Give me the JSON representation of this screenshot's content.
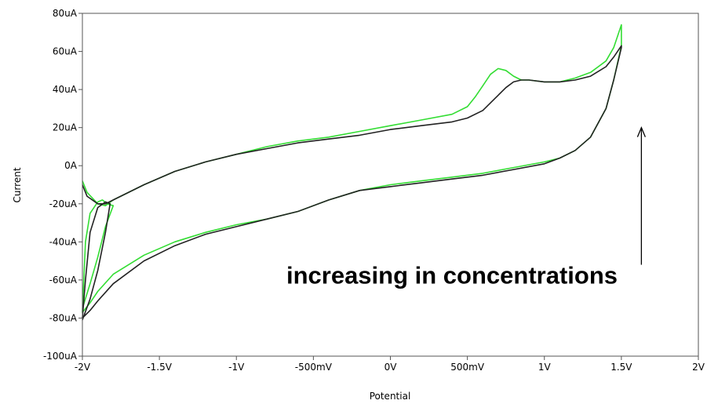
{
  "chart_data": {
    "type": "line",
    "title": "",
    "xlabel": "Potential",
    "ylabel": "Current",
    "xlim": [
      -2,
      2
    ],
    "ylim": [
      -100,
      80
    ],
    "grid": false,
    "x_ticks": [
      {
        "value": -2,
        "label": "-2V"
      },
      {
        "value": -1.5,
        "label": "-1.5V"
      },
      {
        "value": -1,
        "label": "-1V"
      },
      {
        "value": -0.5,
        "label": "-500mV"
      },
      {
        "value": 0,
        "label": "0V"
      },
      {
        "value": 0.5,
        "label": "500mV"
      },
      {
        "value": 1,
        "label": "1V"
      },
      {
        "value": 1.5,
        "label": "1.5V"
      },
      {
        "value": 2,
        "label": "2V"
      }
    ],
    "y_ticks": [
      {
        "value": 80,
        "label": "80uA"
      },
      {
        "value": 60,
        "label": "60uA"
      },
      {
        "value": 40,
        "label": "40uA"
      },
      {
        "value": 20,
        "label": "20uA"
      },
      {
        "value": 0,
        "label": "0A"
      },
      {
        "value": -20,
        "label": "-20uA"
      },
      {
        "value": -40,
        "label": "-40uA"
      },
      {
        "value": -60,
        "label": "-60uA"
      },
      {
        "value": -80,
        "label": "-80uA"
      },
      {
        "value": -100,
        "label": "-100uA"
      }
    ],
    "series": [
      {
        "color": "#33dd33",
        "x": [
          -2.0,
          -1.97,
          -1.9,
          -1.85,
          -1.8,
          -1.6,
          -1.4,
          -1.2,
          -1.0,
          -0.8,
          -0.6,
          -0.4,
          -0.2,
          0.0,
          0.2,
          0.4,
          0.5,
          0.55,
          0.6,
          0.65,
          0.7,
          0.75,
          0.8,
          0.85,
          0.9,
          1.0,
          1.1,
          1.2,
          1.3,
          1.4,
          1.45,
          1.5,
          1.5,
          1.45,
          1.4,
          1.3,
          1.2,
          1.1,
          1.0,
          0.8,
          0.6,
          0.4,
          0.2,
          0.0,
          -0.2,
          -0.4,
          -0.6,
          -0.8,
          -1.0,
          -1.2,
          -1.4,
          -1.6,
          -1.8,
          -1.9,
          -1.95,
          -2.0,
          -1.98,
          -1.95,
          -1.9,
          -1.87,
          -1.84,
          -1.8,
          -1.85,
          -1.9,
          -1.95,
          -2.0
        ],
        "y": [
          -8,
          -14,
          -20,
          -21,
          -18,
          -10,
          -3,
          2,
          6,
          10,
          13,
          15,
          18,
          21,
          24,
          27,
          31,
          36,
          42,
          48,
          51,
          50,
          47,
          45,
          45,
          44,
          44,
          46,
          49,
          55,
          62,
          74,
          63,
          45,
          30,
          15,
          8,
          4,
          2,
          -1,
          -4,
          -6,
          -8,
          -10,
          -13,
          -18,
          -24,
          -28,
          -31,
          -35,
          -40,
          -47,
          -57,
          -66,
          -72,
          -77,
          -40,
          -25,
          -19,
          -18,
          -20,
          -21,
          -32,
          -48,
          -62,
          -75
        ]
      },
      {
        "color": "#222222",
        "x": [
          -2.0,
          -1.97,
          -1.9,
          -1.85,
          -1.8,
          -1.6,
          -1.4,
          -1.2,
          -1.0,
          -0.8,
          -0.6,
          -0.4,
          -0.2,
          0.0,
          0.2,
          0.4,
          0.5,
          0.6,
          0.7,
          0.75,
          0.8,
          0.85,
          0.9,
          1.0,
          1.1,
          1.2,
          1.3,
          1.4,
          1.45,
          1.5,
          1.5,
          1.45,
          1.4,
          1.3,
          1.2,
          1.1,
          1.0,
          0.8,
          0.6,
          0.4,
          0.2,
          0.0,
          -0.2,
          -0.4,
          -0.6,
          -0.8,
          -1.0,
          -1.2,
          -1.4,
          -1.6,
          -1.8,
          -1.9,
          -1.95,
          -2.0,
          -1.98,
          -1.95,
          -1.9,
          -1.85,
          -1.82,
          -1.85,
          -1.9,
          -1.95,
          -2.0
        ],
        "y": [
          -10,
          -16,
          -20,
          -20,
          -18,
          -10,
          -3,
          2,
          6,
          9,
          12,
          14,
          16,
          19,
          21,
          23,
          25,
          29,
          37,
          41,
          44,
          45,
          45,
          44,
          44,
          45,
          47,
          52,
          57,
          63,
          62,
          45,
          30,
          15,
          8,
          4,
          1,
          -2,
          -5,
          -7,
          -9,
          -11,
          -13,
          -18,
          -24,
          -28,
          -32,
          -36,
          -42,
          -50,
          -62,
          -71,
          -76,
          -80,
          -60,
          -35,
          -22,
          -19,
          -20,
          -35,
          -55,
          -70,
          -81
        ]
      }
    ],
    "annotations": [
      {
        "text": "increasing in concentrations",
        "x": 0.4,
        "y": -62
      },
      {
        "text": "",
        "type": "arrow",
        "x": 1.63,
        "y_from": -52,
        "y_to": 20
      }
    ]
  }
}
